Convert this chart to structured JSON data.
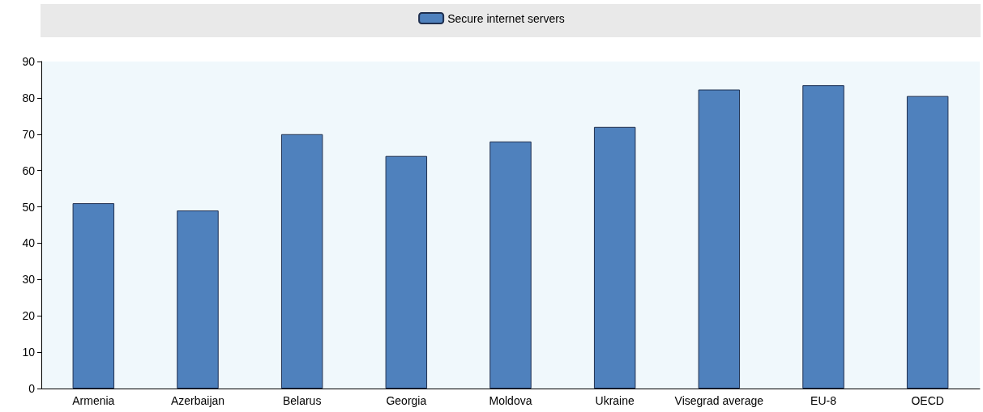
{
  "chart_data": {
    "type": "bar",
    "categories": [
      "Armenia",
      "Azerbaijan",
      "Belarus",
      "Georgia",
      "Moldova",
      "Ukraine",
      "Visegrad average",
      "EU-8",
      "OECD"
    ],
    "series": [
      {
        "name": "Secure internet servers",
        "color": "#4f81bd",
        "values": [
          51,
          49,
          70,
          64,
          68,
          72,
          82.3,
          83.5,
          80.5
        ]
      }
    ],
    "ylim": [
      0,
      90
    ],
    "yticks": [
      0,
      10,
      20,
      30,
      40,
      50,
      60,
      70,
      80,
      90
    ],
    "grid": false,
    "legend": "top"
  }
}
